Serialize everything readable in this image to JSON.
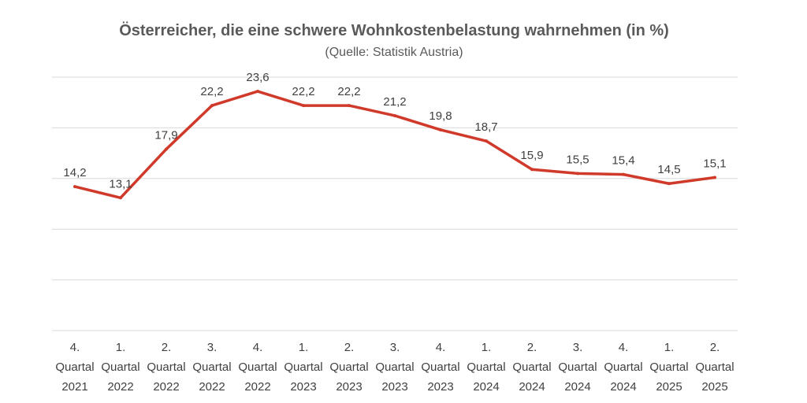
{
  "chart_data": {
    "type": "line",
    "title": "Österreicher, die eine schwere Wohnkostenbelastung wahrnehmen (in %)",
    "subtitle": "(Quelle: Statistik Austria)",
    "categories": [
      [
        "4.",
        "Quartal",
        "2021"
      ],
      [
        "1.",
        "Quartal",
        "2022"
      ],
      [
        "2.",
        "Quartal",
        "2022"
      ],
      [
        "3.",
        "Quartal",
        "2022"
      ],
      [
        "4.",
        "Quartal",
        "2022"
      ],
      [
        "1.",
        "Quartal",
        "2023"
      ],
      [
        "2.",
        "Quartal",
        "2023"
      ],
      [
        "3.",
        "Quartal",
        "2023"
      ],
      [
        "4.",
        "Quartal",
        "2023"
      ],
      [
        "1.",
        "Quartal",
        "2024"
      ],
      [
        "2.",
        "Quartal",
        "2024"
      ],
      [
        "3.",
        "Quartal",
        "2024"
      ],
      [
        "4.",
        "Quartal",
        "2024"
      ],
      [
        "1.",
        "Quartal",
        "2025"
      ],
      [
        "2.",
        "Quartal",
        "2025"
      ]
    ],
    "series": [
      {
        "values": [
          14.2,
          13.1,
          17.9,
          22.2,
          23.6,
          22.2,
          22.2,
          21.2,
          19.8,
          18.7,
          15.9,
          15.5,
          15.4,
          14.5,
          15.1
        ],
        "value_labels": [
          "14,2",
          "13,1",
          "17,9",
          "22,2",
          "23,6",
          "22,2",
          "22,2",
          "21,2",
          "19,8",
          "18,7",
          "15,9",
          "15,5",
          "15,4",
          "14,5",
          "15,1"
        ],
        "color": "#d03a2a"
      }
    ],
    "ylim": [
      0,
      25
    ],
    "grid": true,
    "legend": "none",
    "axis_labels_visible": false
  }
}
